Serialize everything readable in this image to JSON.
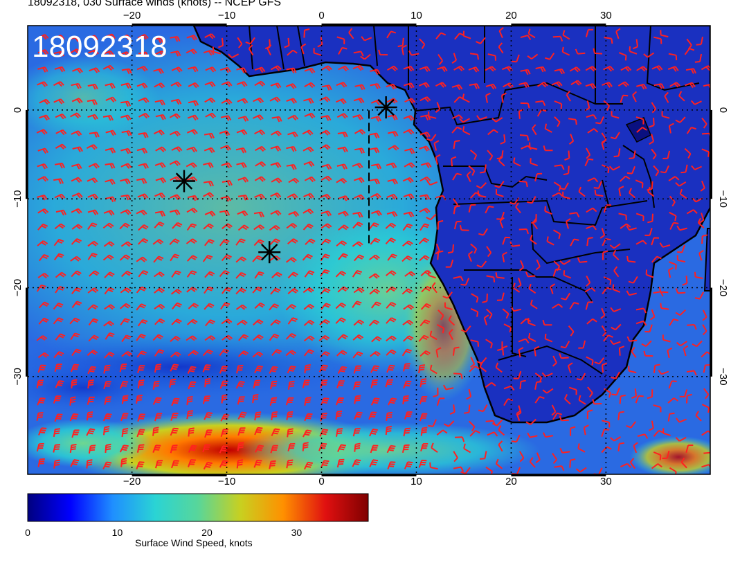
{
  "header": {
    "title": "18092318, 030 Surface winds (knots) -- NCEP GFS",
    "stamp": "18092318"
  },
  "map": {
    "lon_range": [
      -31,
      41
    ],
    "lat_range": [
      -41,
      9.5
    ],
    "lon_ticks": [
      -20,
      -10,
      0,
      10,
      20,
      30
    ],
    "lat_ticks": [
      0,
      -10,
      -20,
      -30
    ],
    "lon_tick_labels": [
      "−20",
      "−10",
      "0",
      "10",
      "20",
      "30"
    ],
    "lat_tick_labels": [
      "0",
      "−10",
      "−20",
      "−30"
    ],
    "grid": true,
    "land_color": "#1a2fc0",
    "ocean_color": "#2a66e0",
    "barb_color": "#ff2020",
    "markers": [
      {
        "name": "star-marker",
        "lon": -14.5,
        "lat": -8.0
      },
      {
        "name": "star-marker",
        "lon": -5.5,
        "lat": -16.0
      },
      {
        "name": "star-marker",
        "lon": 6.8,
        "lat": 0.3
      }
    ],
    "track_line": {
      "lon": 5.0,
      "lat_from": -15.0,
      "lat_to": 0.3
    }
  },
  "colorbar": {
    "label": "Surface Wind Speed, knots",
    "min": 0,
    "max": 38,
    "ticks": [
      0,
      10,
      20,
      30
    ],
    "colors": [
      "#00007f",
      "#0000ff",
      "#1f8fff",
      "#2ad4d4",
      "#58d69a",
      "#c8d020",
      "#ff9000",
      "#e01010",
      "#7f0000"
    ]
  }
}
